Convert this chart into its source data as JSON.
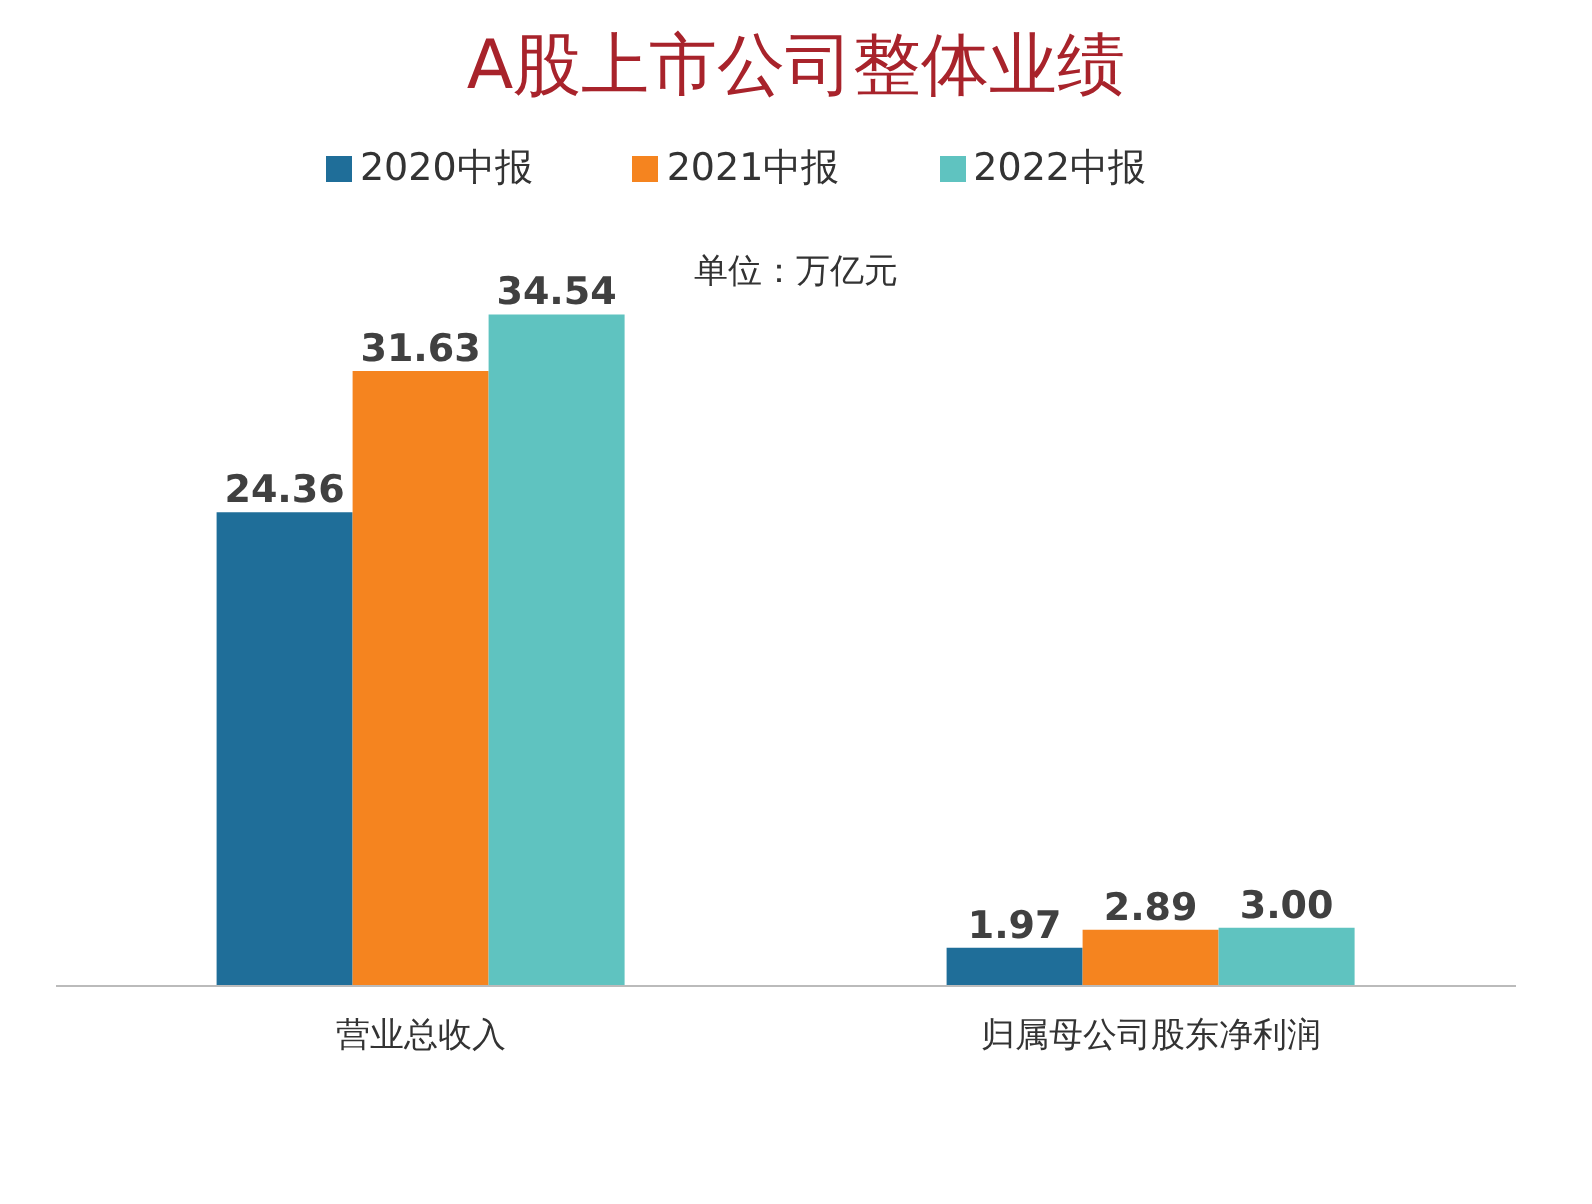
{
  "chart_data": {
    "type": "bar",
    "title": "A股上市公司整体业绩",
    "subtitle": "单位：万亿元",
    "categories": [
      "营业总收入",
      "归属母公司股东净利润"
    ],
    "series": [
      {
        "name": "2020中报",
        "color": "#1f6e99",
        "values": [
          24.36,
          1.97
        ],
        "value_labels": [
          "24.36",
          "1.97"
        ]
      },
      {
        "name": "2021中报",
        "color": "#f5841f",
        "values": [
          31.63,
          2.89
        ],
        "value_labels": [
          "31.63",
          "2.89"
        ]
      },
      {
        "name": "2022中报",
        "color": "#5fc3c0",
        "values": [
          34.54,
          3.0
        ],
        "value_labels": [
          "34.54",
          "3.00"
        ]
      }
    ],
    "legend": "top"
  }
}
